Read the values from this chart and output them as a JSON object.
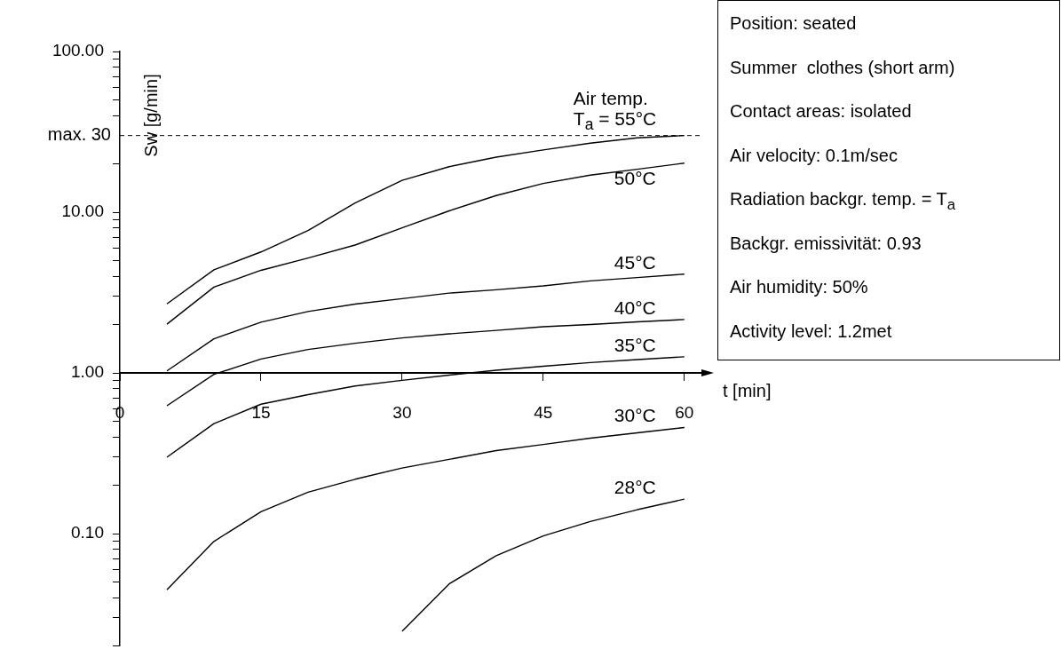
{
  "chart_data": {
    "type": "line",
    "xlabel": "t [min]",
    "ylabel": "Sw [g/min]",
    "x": [
      5,
      10,
      15,
      20,
      25,
      30,
      35,
      40,
      45,
      50,
      55,
      60
    ],
    "xlim": [
      0,
      62
    ],
    "xticks": [
      0,
      15,
      30,
      45,
      60
    ],
    "ylim": [
      0.02,
      100
    ],
    "log": "y",
    "yticks": [
      {
        "value": 0.02,
        "label": null
      },
      {
        "value": 0.03,
        "label": null
      },
      {
        "value": 0.04,
        "label": null
      },
      {
        "value": 0.05,
        "label": null
      },
      {
        "value": 0.06,
        "label": null
      },
      {
        "value": 0.07,
        "label": null
      },
      {
        "value": 0.08,
        "label": null
      },
      {
        "value": 0.09,
        "label": null
      },
      {
        "value": 0.1,
        "label": "0.10"
      },
      {
        "value": 0.2,
        "label": null
      },
      {
        "value": 0.3,
        "label": null
      },
      {
        "value": 0.4,
        "label": null
      },
      {
        "value": 0.5,
        "label": null
      },
      {
        "value": 0.6,
        "label": null
      },
      {
        "value": 0.7,
        "label": null
      },
      {
        "value": 0.8,
        "label": null
      },
      {
        "value": 0.9,
        "label": null
      },
      {
        "value": 1,
        "label": "1.00"
      },
      {
        "value": 2,
        "label": null
      },
      {
        "value": 3,
        "label": null
      },
      {
        "value": 4,
        "label": null
      },
      {
        "value": 5,
        "label": null
      },
      {
        "value": 6,
        "label": null
      },
      {
        "value": 7,
        "label": null
      },
      {
        "value": 8,
        "label": null
      },
      {
        "value": 9,
        "label": null
      },
      {
        "value": 10,
        "label": "10.00"
      },
      {
        "value": 20,
        "label": null
      },
      {
        "value": 40,
        "label": null
      },
      {
        "value": 50,
        "label": null
      },
      {
        "value": 60,
        "label": null
      },
      {
        "value": 70,
        "label": null
      },
      {
        "value": 80,
        "label": null
      },
      {
        "value": 90,
        "label": null
      },
      {
        "value": 100,
        "label": "100.00"
      }
    ],
    "grid": false,
    "legend": false,
    "marker": "none",
    "line_style": "solid",
    "ref_lines": [
      {
        "axis": "y",
        "value": 30,
        "label": "max. 30",
        "line_style": "dashed",
        "color": "#000000"
      }
    ],
    "series": [
      {
        "name": "T$_{a}$ = 55°C",
        "color": "#000000",
        "values": [
          2.69,
          4.38,
          5.66,
          7.69,
          11.4,
          15.8,
          19.2,
          22.0,
          24.4,
          26.9,
          29.0,
          30.0
        ]
      },
      {
        "name": "50°C",
        "color": "#000000",
        "values": [
          2.01,
          3.42,
          4.35,
          5.19,
          6.25,
          8.0,
          10.2,
          12.7,
          15.1,
          17.0,
          18.5,
          20.2
        ]
      },
      {
        "name": "45°C",
        "color": "#000000",
        "values": [
          1.03,
          1.63,
          2.07,
          2.41,
          2.68,
          2.9,
          3.14,
          3.29,
          3.48,
          3.74,
          3.92,
          4.12
        ]
      },
      {
        "name": "40°C",
        "color": "#000000",
        "values": [
          0.625,
          0.98,
          1.22,
          1.4,
          1.53,
          1.65,
          1.75,
          1.84,
          1.94,
          2.0,
          2.08,
          2.15
        ]
      },
      {
        "name": "35°C",
        "color": "#000000",
        "values": [
          0.299,
          0.484,
          0.639,
          0.733,
          0.829,
          0.9,
          0.97,
          1.04,
          1.1,
          1.16,
          1.21,
          1.26
        ]
      },
      {
        "name": "30°C",
        "color": "#000000",
        "values": [
          0.0448,
          0.0895,
          0.137,
          0.181,
          0.218,
          0.256,
          0.29,
          0.329,
          0.359,
          0.393,
          0.424,
          0.458
        ]
      },
      {
        "name": "28°C",
        "color": "#000000",
        "values": [
          null,
          null,
          null,
          null,
          null,
          0.0247,
          0.0487,
          0.073,
          0.0968,
          0.119,
          0.141,
          0.164
        ]
      }
    ],
    "annotations": [
      "Air temp.",
      "Position: seated",
      "Summer  clothes (short arm)",
      "Contact areas: isolated",
      "Air velocity: 0.1m/sec",
      "Radiation backgr. temp. = T$_{a}$",
      "Backgr. emissivität: 0.93",
      "Air humidity: 50%",
      "Activity level: 1.2met"
    ]
  }
}
